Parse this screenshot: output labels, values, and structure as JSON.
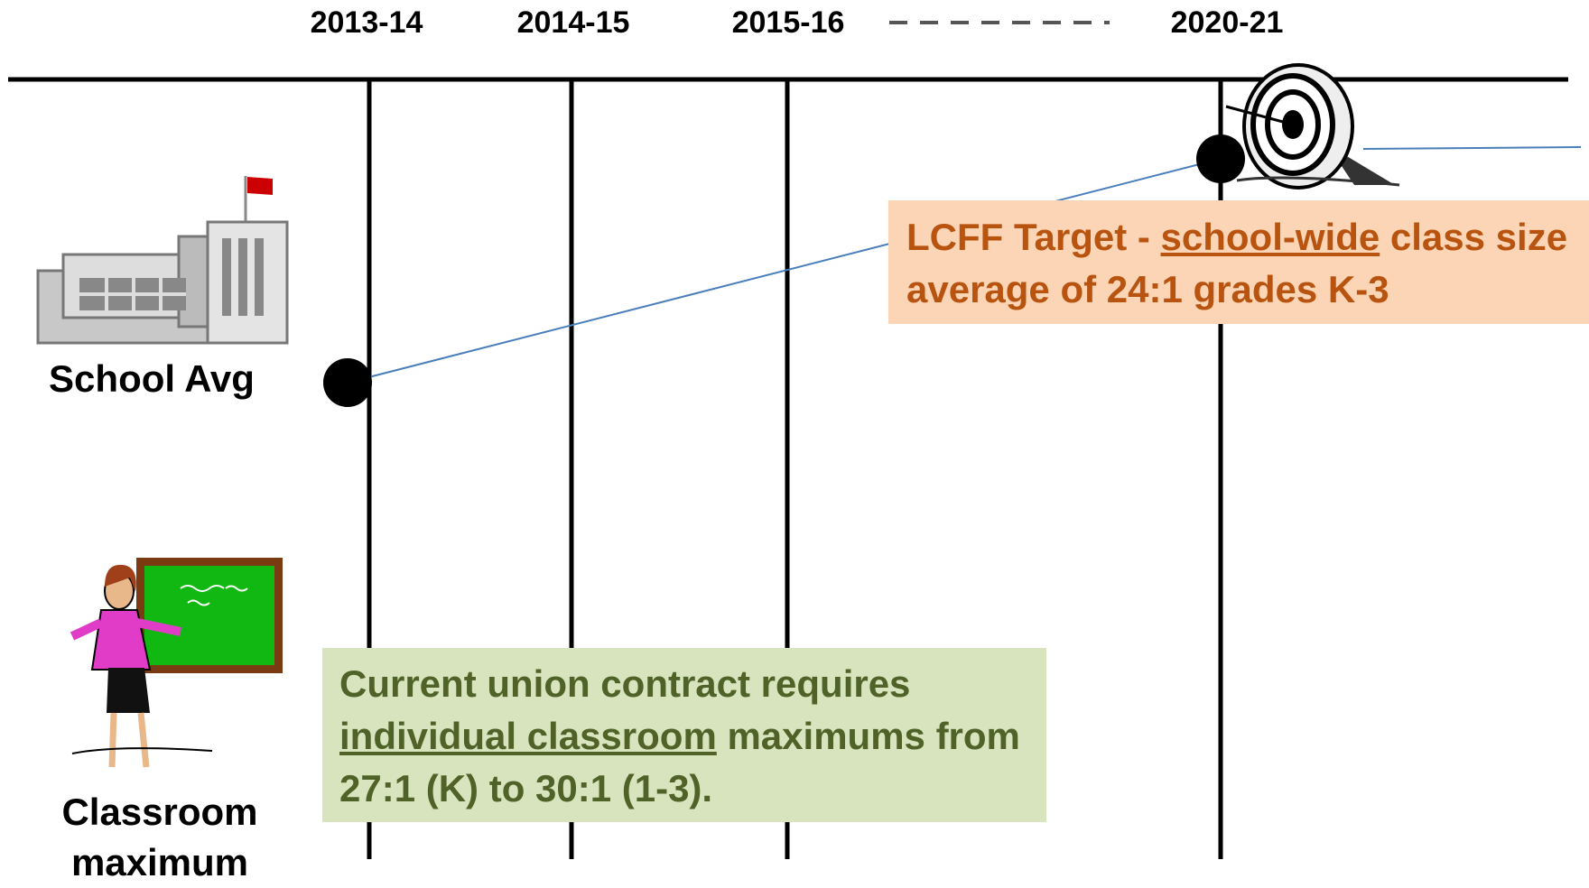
{
  "timeline": {
    "years": [
      "2013-14",
      "2014-15",
      "2015-16",
      "2020-21"
    ]
  },
  "rows": {
    "school": "School Avg",
    "classroom": "Classroom maximum"
  },
  "callouts": {
    "target": [
      "LCFF Target - ",
      "school-wide",
      " class size average of 24:1 grades K-3"
    ],
    "union": [
      "Current union contract requires ",
      "individual classroom",
      " maximums from 27:1 (K) to 30:1 (1-3)."
    ]
  }
}
